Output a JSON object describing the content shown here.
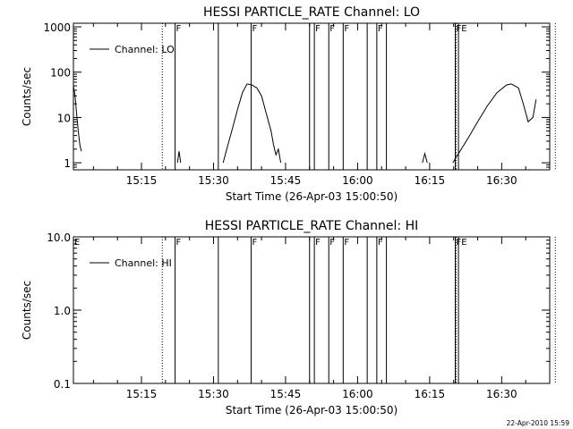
{
  "footer_date": "22-Apr-2010 15:59",
  "chart_data": [
    {
      "type": "line",
      "title": "HESSI PARTICLE_RATE Channel: LO",
      "xlabel": "Start Time (26-Apr-03 15:00:50)",
      "ylabel": "Counts/sec",
      "yscale": "log",
      "xlim_minutes": [
        0.833,
        100.0
      ],
      "ylim": [
        0.7,
        1200
      ],
      "x_ticks": [
        "15:15",
        "15:30",
        "15:45",
        "16:00",
        "16:15",
        "16:30"
      ],
      "y_ticks": [
        "1000",
        "100",
        "10",
        "1"
      ],
      "legend": [
        "Channel: LO"
      ],
      "legend_position": "top-left",
      "series": [
        {
          "name": "Channel: LO",
          "segments": [
            {
              "x": [
                "15:00:50",
                "15:01:10",
                "15:01:30",
                "15:01:50",
                "15:02:10",
                "15:02:30"
              ],
              "y": [
                50,
                30,
                12,
                5,
                2.5,
                1.8
              ]
            },
            {
              "x": [
                "15:22:30",
                "15:22:50",
                "15:23:10"
              ],
              "y": [
                1.0,
                1.8,
                1.0
              ]
            },
            {
              "x": [
                "15:32:00",
                "15:33:00",
                "15:34:00",
                "15:35:00",
                "15:36:00",
                "15:37:00",
                "15:38:00",
                "15:39:00",
                "15:40:00",
                "15:41:00",
                "15:42:00",
                "15:42:30",
                "15:43:00",
                "15:43:30",
                "15:44:00"
              ],
              "y": [
                1.0,
                2.5,
                6,
                15,
                35,
                55,
                52,
                45,
                30,
                12,
                5,
                2.5,
                1.5,
                2.0,
                1.0
              ]
            },
            {
              "x": [
                "16:13:30",
                "16:14:00",
                "16:14:30"
              ],
              "y": [
                1.0,
                1.6,
                1.0
              ]
            },
            {
              "x": [
                "16:19:50",
                "16:21:00",
                "16:23:00",
                "16:25:00",
                "16:27:00",
                "16:29:00",
                "16:31:00",
                "16:32:00",
                "16:33:30",
                "16:34:30",
                "16:35:30",
                "16:36:30",
                "16:37:10"
              ],
              "y": [
                1.0,
                1.6,
                3.5,
                8,
                18,
                35,
                52,
                55,
                45,
                20,
                8,
                10,
                25
              ]
            }
          ]
        }
      ],
      "vlines_solid": [
        "15:22:00",
        "15:31:00",
        "15:37:50",
        "15:50:00",
        "15:51:00",
        "15:54:00",
        "15:57:00",
        "16:02:00",
        "16:04:00",
        "16:06:00",
        "16:20:20",
        "16:21:00"
      ],
      "vlines_dotted": [
        "15:19:20",
        "16:20:30",
        "16:41:10"
      ],
      "flags": [
        {
          "label": "F",
          "x": "15:22:00"
        },
        {
          "label": "F",
          "x": "15:37:50"
        },
        {
          "label": "F",
          "x": "15:51:00"
        },
        {
          "label": "F",
          "x": "15:54:00"
        },
        {
          "label": "F",
          "x": "15:57:00"
        },
        {
          "label": "F",
          "x": "16:04:00"
        },
        {
          "label": "FE",
          "x": "16:20:20"
        }
      ]
    },
    {
      "type": "line",
      "title": "HESSI PARTICLE_RATE Channel: HI",
      "xlabel": "Start Time (26-Apr-03 15:00:50)",
      "ylabel": "Counts/sec",
      "yscale": "log",
      "xlim_minutes": [
        0.833,
        100.0
      ],
      "ylim": [
        0.1,
        10.0
      ],
      "x_ticks": [
        "15:15",
        "15:30",
        "15:45",
        "16:00",
        "16:15",
        "16:30"
      ],
      "y_ticks": [
        "10.0",
        "1.0",
        "0.1"
      ],
      "legend": [
        "Channel: HI"
      ],
      "legend_position": "top-left",
      "series": [
        {
          "name": "Channel: HI",
          "segments": []
        }
      ],
      "vlines_solid": [
        "15:22:00",
        "15:31:00",
        "15:37:50",
        "15:50:00",
        "15:51:00",
        "15:54:00",
        "15:57:00",
        "16:02:00",
        "16:04:00",
        "16:06:00",
        "16:20:20",
        "16:21:00"
      ],
      "vlines_dotted": [
        "15:19:20",
        "16:20:30",
        "16:41:10"
      ],
      "flags": [
        {
          "label": "E",
          "x": "15:00:50"
        },
        {
          "label": "F",
          "x": "15:22:00"
        },
        {
          "label": "F",
          "x": "15:37:50"
        },
        {
          "label": "F",
          "x": "15:51:00"
        },
        {
          "label": "F",
          "x": "15:54:00"
        },
        {
          "label": "F",
          "x": "15:57:00"
        },
        {
          "label": "F",
          "x": "16:04:00"
        },
        {
          "label": "FE",
          "x": "16:20:20"
        }
      ]
    }
  ]
}
